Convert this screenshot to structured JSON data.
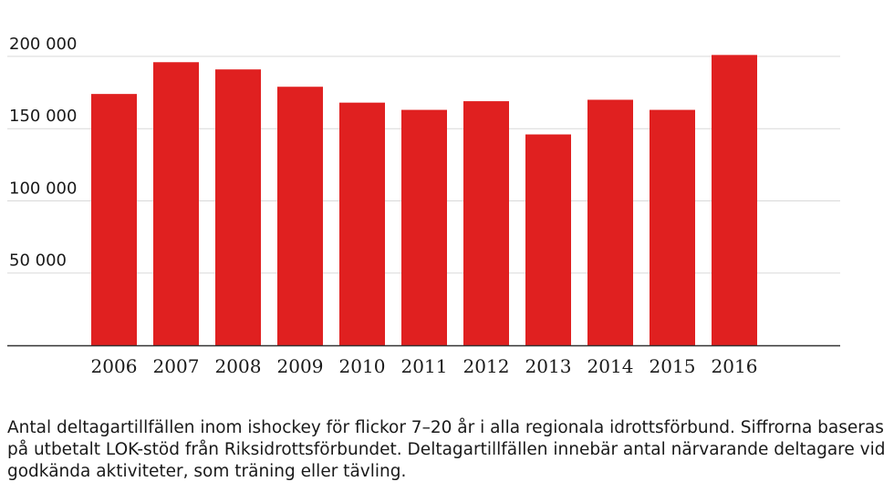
{
  "chart_data": {
    "type": "bar",
    "title": "",
    "xlabel": "",
    "ylabel": "",
    "categories": [
      "2006",
      "2007",
      "2008",
      "2009",
      "2010",
      "2011",
      "2012",
      "2013",
      "2014",
      "2015",
      "2016"
    ],
    "values": [
      174000,
      196000,
      191000,
      179000,
      168000,
      163000,
      169000,
      146000,
      170000,
      163000,
      201000
    ],
    "ylim": [
      0,
      205000
    ],
    "yticks": [
      50000,
      100000,
      150000,
      200000
    ],
    "ytick_labels": [
      "50 000",
      "100 000",
      "150 000",
      "200 000"
    ],
    "grid": true,
    "legend": "none",
    "bar_color": "#e02020",
    "grid_color": "#d9d9d9",
    "axis_color": "#333333"
  },
  "caption": {
    "text": "Antal deltagartillfällen inom ishockey för flickor 7–20 år i alla regionala idrottsförbund. Siffrorna baseras på utbetalt LOK-stöd från Riksidrottsförbundet. Deltagartillfällen innebär antal närvarande deltagare vid godkända aktiviteter, som träning eller tävling."
  }
}
